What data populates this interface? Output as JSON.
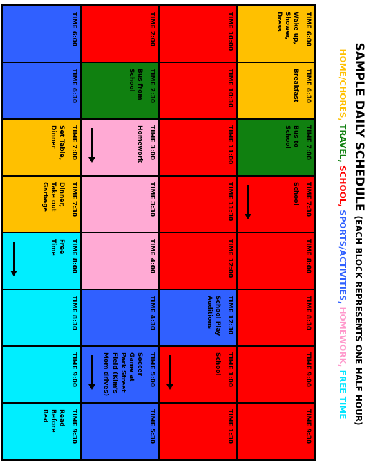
{
  "title": {
    "main": "SAMPLE DAILY SCHEDULE",
    "sub": "(EACH BLOCK REPRESENTS ONE HALF HOUR)"
  },
  "legend": [
    {
      "text": "HOME/CHORES, ",
      "color": "#ffc000"
    },
    {
      "text": "TRAVEL, ",
      "color": "#108010"
    },
    {
      "text": "SCHOOL, ",
      "color": "#ff0000"
    },
    {
      "text": "SPORTS/ACTIVITIES, ",
      "color": "#3060ff"
    },
    {
      "text": "HOMEWORK, ",
      "color": "#ff99cc"
    },
    {
      "text": "FREE TIME",
      "color": "#00e5ff"
    }
  ],
  "colors": {
    "home": "#ffc000",
    "travel": "#108010",
    "school": "#ff0000",
    "sports": "#3060ff",
    "homework": "#ffaad4",
    "free": "#00eeff"
  },
  "rows": [
    [
      {
        "time": "TIME 6:00",
        "activity": "Wake up,\nShower,\nDress",
        "cat": "home"
      },
      {
        "time": "TIME 6:30",
        "activity": "Breakfast",
        "cat": "home"
      },
      {
        "time": "TIME 7:00",
        "activity": "Bus to\nSchool",
        "cat": "travel"
      },
      {
        "time": "TIME 7:30",
        "activity": "School",
        "cat": "school",
        "arrow": true
      },
      {
        "time": "TIME 8:00",
        "activity": "",
        "cat": "school"
      },
      {
        "time": "TIME 8:30",
        "activity": "",
        "cat": "school"
      },
      {
        "time": "TIME 9:00",
        "activity": "",
        "cat": "school"
      },
      {
        "time": "TIME 9:30",
        "activity": "",
        "cat": "school"
      }
    ],
    [
      {
        "time": "TIME 10:00",
        "activity": "",
        "cat": "school"
      },
      {
        "time": "TIME 10:30",
        "activity": "",
        "cat": "school"
      },
      {
        "time": "TIME 11:00",
        "activity": "",
        "cat": "school"
      },
      {
        "time": "TIME 11:30",
        "activity": "",
        "cat": "school"
      },
      {
        "time": "TIME 12:00",
        "activity": "",
        "cat": "school"
      },
      {
        "time": "TIME 12:30",
        "activity": "School Play\nAuditions",
        "cat": "sports"
      },
      {
        "time": "TIME 1:00",
        "activity": "School",
        "cat": "school",
        "arrow": true
      },
      {
        "time": "TIME 1:30",
        "activity": "",
        "cat": "school"
      }
    ],
    [
      {
        "time": "TIME 2:00",
        "activity": "",
        "cat": "school"
      },
      {
        "time": "TIME 2:30",
        "activity": "Bus from\nSchool",
        "cat": "travel"
      },
      {
        "time": "TIME 3:00",
        "activity": "Homework",
        "cat": "homework",
        "arrow": true
      },
      {
        "time": "TIME 3:30",
        "activity": "",
        "cat": "homework"
      },
      {
        "time": "TIME 4:00",
        "activity": "",
        "cat": "homework"
      },
      {
        "time": "TIME 4:30",
        "activity": "",
        "cat": "sports"
      },
      {
        "time": "TIME 5:00",
        "activity": "Soccer\nGame at\nPark Street\nField (Kim's\nMom drives)",
        "cat": "sports",
        "arrow": true
      },
      {
        "time": "TIME 5:30",
        "activity": "",
        "cat": "sports"
      }
    ],
    [
      {
        "time": "TIME 6:00",
        "activity": "",
        "cat": "sports"
      },
      {
        "time": "TIME 6:30",
        "activity": "",
        "cat": "sports"
      },
      {
        "time": "TIME 7:00",
        "activity": "Set Table,\nDinner",
        "cat": "home"
      },
      {
        "time": "TIME 7:30",
        "activity": "Dinner,\nTake out\nGarbage",
        "cat": "home"
      },
      {
        "time": "TIME 8:00",
        "activity": "Free\nTime",
        "cat": "free",
        "arrow": true
      },
      {
        "time": "TIME 8:30",
        "activity": "",
        "cat": "free"
      },
      {
        "time": "TIME 9:00",
        "activity": "",
        "cat": "free"
      },
      {
        "time": "TIME 9:30",
        "activity": "Read\nBefore\nBed",
        "cat": "free"
      }
    ]
  ]
}
